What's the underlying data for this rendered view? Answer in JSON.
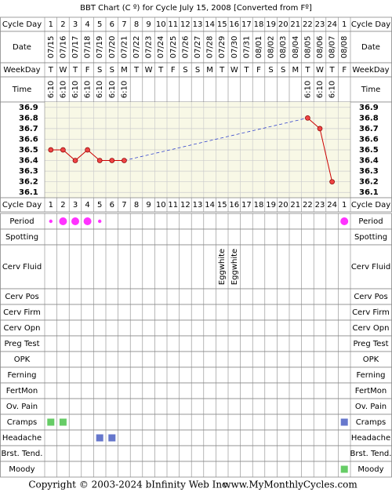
{
  "title": "BBT Chart (C º) for Cycle July 15, 2008  [Converted from Fº]",
  "row_labels": {
    "cycle_day": "Cycle Day",
    "date": "Date",
    "weekday": "WeekDay",
    "time": "Time"
  },
  "cycle_days": [
    1,
    2,
    3,
    4,
    5,
    6,
    7,
    8,
    9,
    10,
    11,
    12,
    13,
    14,
    15,
    16,
    17,
    18,
    19,
    20,
    21,
    22,
    23,
    24,
    1
  ],
  "dates": [
    "07/15",
    "07/16",
    "07/17",
    "07/18",
    "07/19",
    "07/20",
    "07/21",
    "07/22",
    "07/23",
    "07/24",
    "07/25",
    "07/26",
    "07/27",
    "07/28",
    "07/29",
    "07/30",
    "07/31",
    "08/01",
    "08/02",
    "08/03",
    "08/04",
    "08/05",
    "08/06",
    "08/07",
    "08/08"
  ],
  "weekdays": [
    "T",
    "W",
    "T",
    "F",
    "S",
    "S",
    "M",
    "T",
    "W",
    "T",
    "F",
    "S",
    "S",
    "M",
    "T",
    "W",
    "T",
    "F",
    "S",
    "S",
    "M",
    "T",
    "W",
    "T",
    "F"
  ],
  "times": [
    "6:10",
    "6:10",
    "6:10",
    "6:10",
    "6:10",
    "6:10",
    "6:10",
    null,
    null,
    null,
    null,
    null,
    null,
    null,
    null,
    null,
    null,
    null,
    null,
    null,
    null,
    "6:10",
    "6:10",
    "6:10",
    null
  ],
  "chart_data": {
    "type": "line",
    "color": "#cc0000",
    "gap_color": "#3344cc",
    "values": [
      36.5,
      36.5,
      36.4,
      36.5,
      36.4,
      36.4,
      36.4,
      null,
      null,
      null,
      null,
      null,
      null,
      null,
      null,
      null,
      null,
      null,
      null,
      null,
      null,
      36.8,
      36.7,
      36.2,
      null
    ],
    "ylim": [
      36.05,
      36.95
    ],
    "yticks": [
      36.1,
      36.2,
      36.3,
      36.4,
      36.5,
      36.6,
      36.7,
      36.8,
      36.9
    ],
    "grid": true
  },
  "observations": [
    {
      "label": "Period",
      "marks": [
        {
          "color": "#ff33ff",
          "size": "small"
        },
        {
          "color": "#ff33ff",
          "size": "large"
        },
        {
          "color": "#ff33ff",
          "size": "large"
        },
        {
          "color": "#ff33ff",
          "size": "large"
        },
        {
          "color": "#ff33ff",
          "size": "small"
        },
        null,
        null,
        null,
        null,
        null,
        null,
        null,
        null,
        null,
        null,
        null,
        null,
        null,
        null,
        null,
        null,
        null,
        null,
        null,
        {
          "color": "#ff33ff",
          "size": "large"
        }
      ]
    },
    {
      "label": "Spotting"
    },
    {
      "label": "Cerv Fluid",
      "texts": [
        null,
        null,
        null,
        null,
        null,
        null,
        null,
        null,
        null,
        null,
        null,
        null,
        null,
        null,
        "Eggwhite",
        "Eggwhite",
        null,
        null,
        null,
        null,
        null,
        null,
        null,
        null,
        null
      ]
    },
    {
      "label": "Cerv Pos"
    },
    {
      "label": "Cerv Firm"
    },
    {
      "label": "Cerv Opn"
    },
    {
      "label": "Preg Test"
    },
    {
      "label": "OPK"
    },
    {
      "label": "Ferning"
    },
    {
      "label": "FertMon"
    },
    {
      "label": "Ov. Pain"
    },
    {
      "label": "Cramps",
      "marks": [
        {
          "color": "#66cc66"
        },
        {
          "color": "#66cc66"
        },
        null,
        null,
        null,
        null,
        null,
        null,
        null,
        null,
        null,
        null,
        null,
        null,
        null,
        null,
        null,
        null,
        null,
        null,
        null,
        null,
        null,
        null,
        {
          "color": "#6677cc"
        }
      ]
    },
    {
      "label": "Headache",
      "marks": [
        null,
        null,
        null,
        null,
        {
          "color": "#6677cc"
        },
        {
          "color": "#6677cc"
        },
        null,
        null,
        null,
        null,
        null,
        null,
        null,
        null,
        null,
        null,
        null,
        null,
        null,
        null,
        null,
        null,
        null,
        null,
        null
      ]
    },
    {
      "label": "Brst. Tend."
    },
    {
      "label": "Moody",
      "marks": [
        null,
        null,
        null,
        null,
        null,
        null,
        null,
        null,
        null,
        null,
        null,
        null,
        null,
        null,
        null,
        null,
        null,
        null,
        null,
        null,
        null,
        null,
        null,
        null,
        {
          "color": "#66cc66"
        }
      ]
    }
  ],
  "copyright": "Copyright © 2003-2024 bInfinity Web Inc.",
  "site": "www.MyMonthlyCycles.com"
}
